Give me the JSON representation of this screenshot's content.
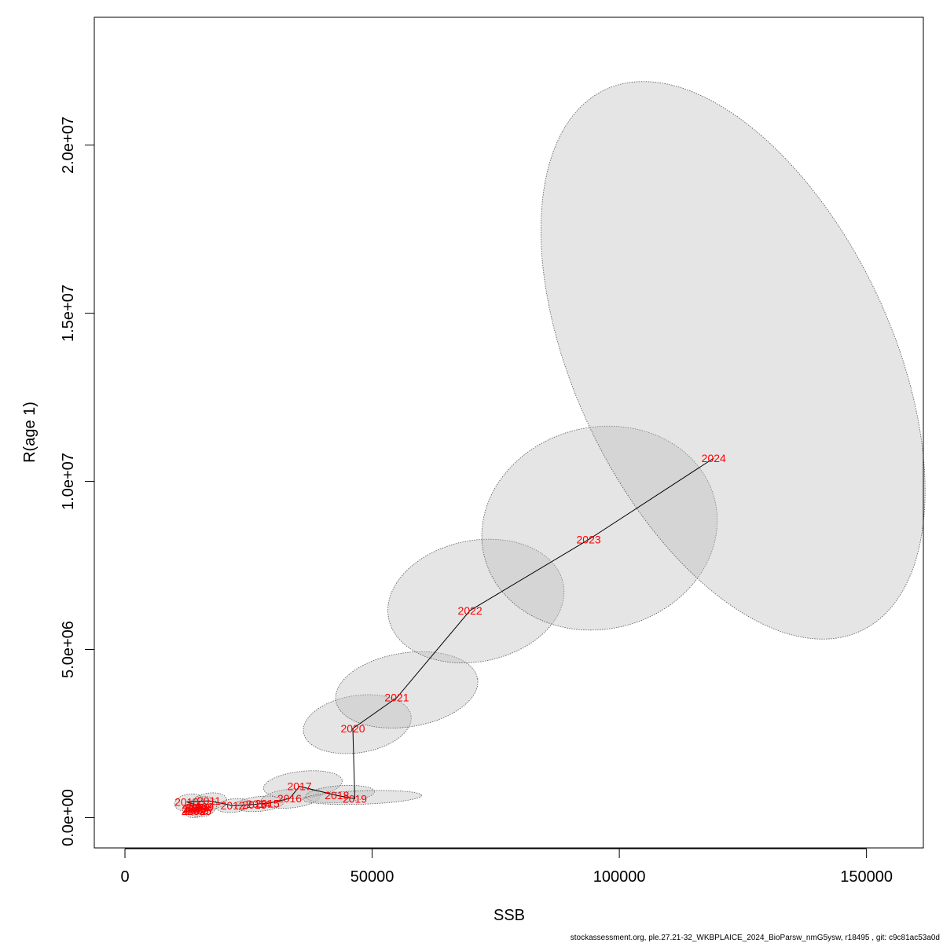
{
  "chart_data": {
    "type": "scatter",
    "xlabel": "SSB",
    "ylabel": "R(age 1)",
    "xlim": [
      -6200,
      161500
    ],
    "ylim": [
      -900000,
      23800000
    ],
    "x_ticks": [
      {
        "value": 0,
        "label": "0"
      },
      {
        "value": 50000,
        "label": "50000"
      },
      {
        "value": 100000,
        "label": "100000"
      },
      {
        "value": 150000,
        "label": "150000"
      }
    ],
    "y_ticks": [
      {
        "value": 0,
        "label": "0.0e+00"
      },
      {
        "value": 5000000,
        "label": "5.0e+06"
      },
      {
        "value": 10000000,
        "label": "1.0e+07"
      },
      {
        "value": 15000000,
        "label": "1.5e+07"
      },
      {
        "value": 20000000,
        "label": "2.0e+07"
      }
    ],
    "points": [
      {
        "year": "2002",
        "ssb": 13900,
        "r": 200000
      },
      {
        "year": "2003",
        "ssb": 14500,
        "r": 210000
      },
      {
        "year": "2004",
        "ssb": 15300,
        "r": 280000
      },
      {
        "year": "2005",
        "ssb": 15000,
        "r": 200000
      },
      {
        "year": "2006",
        "ssb": 14000,
        "r": 240000
      },
      {
        "year": "2007",
        "ssb": 14200,
        "r": 280000
      },
      {
        "year": "2008",
        "ssb": 14700,
        "r": 300000
      },
      {
        "year": "2009",
        "ssb": 15500,
        "r": 330000
      },
      {
        "year": "2010",
        "ssb": 12500,
        "r": 470000
      },
      {
        "year": "2011",
        "ssb": 17000,
        "r": 500000
      },
      {
        "year": "2012",
        "ssb": 21800,
        "r": 360000
      },
      {
        "year": "2013",
        "ssb": 26200,
        "r": 390000
      },
      {
        "year": "2014",
        "ssb": 27000,
        "r": 410000
      },
      {
        "year": "2015",
        "ssb": 28800,
        "r": 420000
      },
      {
        "year": "2016",
        "ssb": 33300,
        "r": 570000
      },
      {
        "year": "2017",
        "ssb": 35300,
        "r": 930000
      },
      {
        "year": "2018",
        "ssb": 42900,
        "r": 660000
      },
      {
        "year": "2019",
        "ssb": 46500,
        "r": 560000
      },
      {
        "year": "2020",
        "ssb": 46100,
        "r": 2650000
      },
      {
        "year": "2021",
        "ssb": 55000,
        "r": 3570000
      },
      {
        "year": "2022",
        "ssb": 69800,
        "r": 6160000
      },
      {
        "year": "2023",
        "ssb": 93800,
        "r": 8270000
      },
      {
        "year": "2024",
        "ssb": 119100,
        "r": 10690000
      }
    ],
    "confidence_regions": [
      {
        "year": "2002",
        "cx": 14200,
        "cy": 250000,
        "rx": 2200,
        "ry": 250000
      },
      {
        "year": "2009",
        "cx": 15600,
        "cy": 330000,
        "rx": 3000,
        "ry": 300000
      },
      {
        "year": "2010",
        "cx": 13000,
        "cy": 450000,
        "rx": 3000,
        "ry": 250000
      },
      {
        "year": "2011",
        "cx": 17000,
        "cy": 480000,
        "rx": 3600,
        "ry": 250000
      },
      {
        "year": "2012",
        "cx": 22000,
        "cy": 360000,
        "rx": 3500,
        "ry": 200000
      },
      {
        "year": "2014",
        "cx": 27200,
        "cy": 410000,
        "rx": 5000,
        "ry": 220000
      },
      {
        "year": "2016",
        "cx": 33500,
        "cy": 570000,
        "rx": 6000,
        "ry": 280000
      },
      {
        "year": "2017",
        "cx": 36000,
        "cy": 980000,
        "rx": 8000,
        "ry": 400000
      },
      {
        "year": "2018",
        "cx": 43500,
        "cy": 700000,
        "rx": 7000,
        "ry": 250000
      },
      {
        "year": "2019",
        "cx": 48000,
        "cy": 600000,
        "rx": 12000,
        "ry": 200000
      },
      {
        "year": "2020",
        "cx": 47000,
        "cy": 2780000,
        "rx": 11000,
        "ry": 850000
      },
      {
        "year": "2021",
        "cx": 57000,
        "cy": 3800000,
        "rx": 14500,
        "ry": 1100000
      },
      {
        "year": "2022",
        "cx": 71000,
        "cy": 6440000,
        "rx": 18000,
        "ry": 1800000
      },
      {
        "year": "2023",
        "cx": 96000,
        "cy": 8610000,
        "rx": 24000,
        "ry": 3000000
      },
      {
        "year": "2024",
        "cx": 123000,
        "cy": 13600000,
        "rx": 32000,
        "ry": 8900000
      }
    ],
    "line_color": "#000000",
    "label_color": "#ff0000",
    "region_fill": "#bebebe",
    "region_stroke": "#555555"
  },
  "footer": "stockassessment.org, ple.27.21-32_WKBPLAICE_2024_BioParsw_nmG5ysw, r18495 , git: c9c81ac53a0d"
}
